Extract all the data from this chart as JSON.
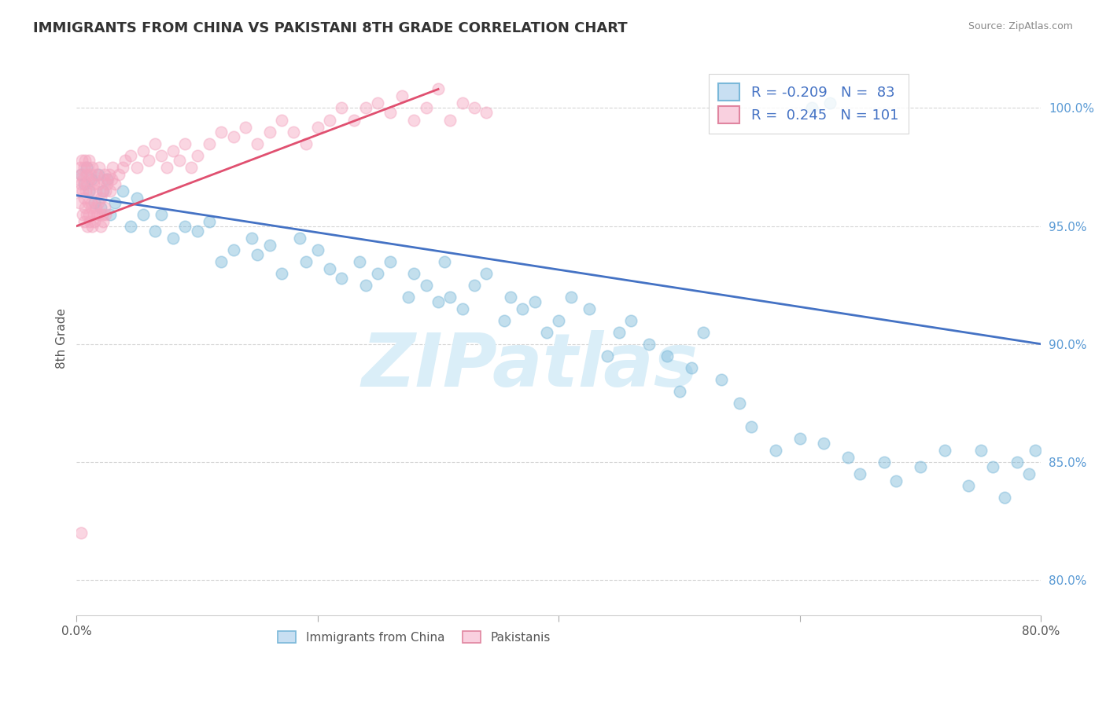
{
  "title": "IMMIGRANTS FROM CHINA VS PAKISTANI 8TH GRADE CORRELATION CHART",
  "source": "Source: ZipAtlas.com",
  "ylabel": "8th Grade",
  "y_ticks_right": [
    80.0,
    85.0,
    90.0,
    95.0,
    100.0
  ],
  "x_range": [
    0.0,
    80.0
  ],
  "y_range": [
    78.5,
    102.0
  ],
  "legend_entries": [
    {
      "label": "Immigrants from China",
      "R": -0.209,
      "N": 83,
      "color": "#7ab8d9"
    },
    {
      "label": "Pakistanis",
      "R": 0.245,
      "N": 101,
      "color": "#f4a6c0"
    }
  ],
  "blue_trend_x": [
    0.0,
    80.0
  ],
  "blue_trend_y": [
    96.3,
    90.0
  ],
  "pink_trend_x": [
    0.0,
    30.0
  ],
  "pink_trend_y": [
    95.0,
    100.8
  ],
  "watermark": "ZIPatlas",
  "watermark_color": "#daeef8",
  "background_color": "#ffffff",
  "grid_color": "#cccccc",
  "blue_scatter_x": [
    0.4,
    0.6,
    0.8,
    1.0,
    1.2,
    1.5,
    1.8,
    2.0,
    2.2,
    2.5,
    2.8,
    3.2,
    3.8,
    4.5,
    5.0,
    5.5,
    6.5,
    7.0,
    8.0,
    9.0,
    10.0,
    11.0,
    12.0,
    13.0,
    14.5,
    15.0,
    16.0,
    17.0,
    18.5,
    19.0,
    20.0,
    21.0,
    22.0,
    23.5,
    24.0,
    25.0,
    26.0,
    27.5,
    28.0,
    29.0,
    30.0,
    30.5,
    31.0,
    32.0,
    33.0,
    34.0,
    35.5,
    36.0,
    37.0,
    38.0,
    39.0,
    40.0,
    41.0,
    42.5,
    44.0,
    45.0,
    46.0,
    47.5,
    49.0,
    50.0,
    51.0,
    52.0,
    53.5,
    55.0,
    56.0,
    58.0,
    60.0,
    62.0,
    64.0,
    65.0,
    67.0,
    68.0,
    70.0,
    72.0,
    74.0,
    75.0,
    76.0,
    77.0,
    78.0,
    79.0,
    79.5,
    61.0,
    62.5
  ],
  "blue_scatter_y": [
    97.2,
    96.8,
    97.5,
    96.5,
    97.0,
    96.0,
    97.2,
    95.8,
    96.5,
    97.0,
    95.5,
    96.0,
    96.5,
    95.0,
    96.2,
    95.5,
    94.8,
    95.5,
    94.5,
    95.0,
    94.8,
    95.2,
    93.5,
    94.0,
    94.5,
    93.8,
    94.2,
    93.0,
    94.5,
    93.5,
    94.0,
    93.2,
    92.8,
    93.5,
    92.5,
    93.0,
    93.5,
    92.0,
    93.0,
    92.5,
    91.8,
    93.5,
    92.0,
    91.5,
    92.5,
    93.0,
    91.0,
    92.0,
    91.5,
    91.8,
    90.5,
    91.0,
    92.0,
    91.5,
    89.5,
    90.5,
    91.0,
    90.0,
    89.5,
    88.0,
    89.0,
    90.5,
    88.5,
    87.5,
    86.5,
    85.5,
    86.0,
    85.8,
    85.2,
    84.5,
    85.0,
    84.2,
    84.8,
    85.5,
    84.0,
    85.5,
    84.8,
    83.5,
    85.0,
    84.5,
    85.5,
    100.0,
    100.2
  ],
  "pink_scatter_x": [
    0.15,
    0.2,
    0.25,
    0.3,
    0.35,
    0.4,
    0.45,
    0.5,
    0.55,
    0.6,
    0.65,
    0.7,
    0.75,
    0.8,
    0.85,
    0.9,
    0.95,
    1.0,
    1.05,
    1.1,
    1.15,
    1.2,
    1.3,
    1.4,
    1.5,
    1.6,
    1.7,
    1.8,
    1.9,
    2.0,
    2.1,
    2.2,
    2.3,
    2.4,
    2.5,
    2.6,
    2.7,
    2.8,
    2.9,
    3.0,
    3.2,
    3.5,
    3.8,
    4.0,
    4.5,
    5.0,
    5.5,
    6.0,
    6.5,
    7.0,
    7.5,
    8.0,
    8.5,
    9.0,
    9.5,
    10.0,
    11.0,
    12.0,
    13.0,
    14.0,
    15.0,
    16.0,
    17.0,
    18.0,
    19.0,
    20.0,
    21.0,
    22.0,
    23.0,
    24.0,
    25.0,
    26.0,
    27.0,
    28.0,
    29.0,
    30.0,
    31.0,
    32.0,
    33.0,
    34.0,
    0.5,
    0.6,
    0.7,
    0.8,
    0.9,
    1.0,
    1.1,
    1.2,
    1.3,
    1.4,
    1.5,
    1.6,
    1.7,
    1.8,
    1.9,
    2.0,
    2.1,
    2.2,
    2.3,
    2.4,
    0.4
  ],
  "pink_scatter_y": [
    96.5,
    97.0,
    96.0,
    97.5,
    96.8,
    97.2,
    97.8,
    96.5,
    97.0,
    97.5,
    96.2,
    97.8,
    96.5,
    97.2,
    96.8,
    97.5,
    96.0,
    97.0,
    97.8,
    96.5,
    97.2,
    96.0,
    97.5,
    96.8,
    97.0,
    96.5,
    97.2,
    96.8,
    97.5,
    96.2,
    96.5,
    97.0,
    97.2,
    96.5,
    96.8,
    97.0,
    97.2,
    96.5,
    97.0,
    97.5,
    96.8,
    97.2,
    97.5,
    97.8,
    98.0,
    97.5,
    98.2,
    97.8,
    98.5,
    98.0,
    97.5,
    98.2,
    97.8,
    98.5,
    97.5,
    98.0,
    98.5,
    99.0,
    98.8,
    99.2,
    98.5,
    99.0,
    99.5,
    99.0,
    98.5,
    99.2,
    99.5,
    100.0,
    99.5,
    100.0,
    100.2,
    99.8,
    100.5,
    99.5,
    100.0,
    100.8,
    99.5,
    100.2,
    100.0,
    99.8,
    95.5,
    95.2,
    95.8,
    95.5,
    95.0,
    95.5,
    95.2,
    95.8,
    95.0,
    95.5,
    95.2,
    95.8,
    95.5,
    96.0,
    95.5,
    95.0,
    95.5,
    95.2,
    95.8,
    95.5,
    82.0
  ]
}
